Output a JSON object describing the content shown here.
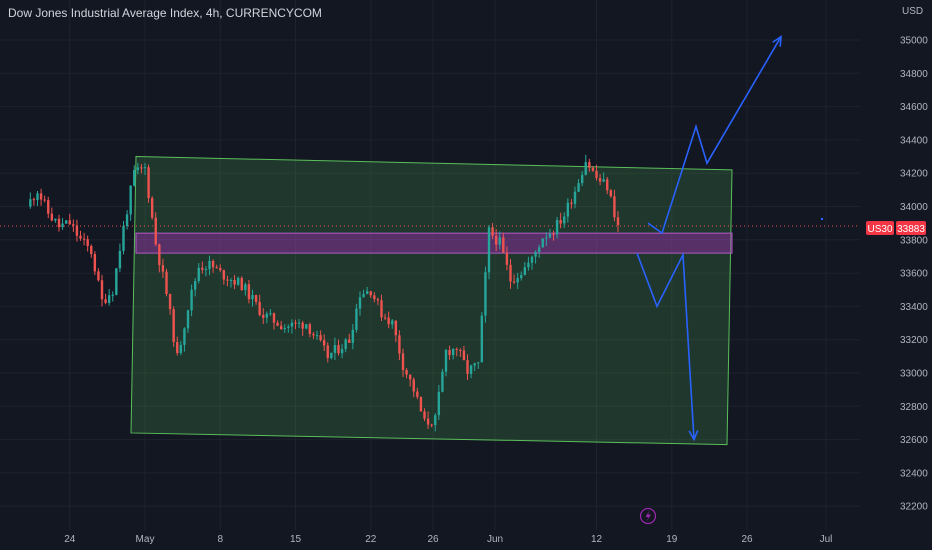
{
  "header": {
    "title": "Dow Jones Industrial Average Index, 4h, CURRENCYCOM"
  },
  "price_scale": {
    "currency": "USD"
  },
  "symbol_tag": {
    "symbol": "US30",
    "price": "33883"
  },
  "colors": {
    "background": "#131722",
    "grid": "#1e222d",
    "up": "#26a69a",
    "down": "#ef5350",
    "channel_fill": "#4caf50",
    "zone_fill": "#9c27b0",
    "projection": "#2962ff",
    "tag_red": "#f23645"
  },
  "chart_data": {
    "type": "candlestick",
    "title": "Dow Jones Industrial Average Index, 4h, CURRENCYCOM",
    "y_ticks": [
      35000,
      34800,
      34600,
      34400,
      34200,
      34000,
      33800,
      33600,
      33400,
      33200,
      33000,
      32800,
      32600,
      32400,
      32200
    ],
    "ylim": [
      32120,
      35200
    ],
    "x_ticks": [
      "24",
      "May",
      "8",
      "15",
      "22",
      "26",
      "Jun",
      "12",
      "19",
      "26",
      "Jul"
    ],
    "last_price": 33883,
    "price_path": [
      [
        "Apr 20",
        34000
      ],
      [
        "Apr 21",
        34100
      ],
      [
        "Apr 22",
        33960
      ],
      [
        "Apr 23",
        33880
      ],
      [
        "Apr 24",
        33900
      ],
      [
        "Apr 25",
        33800
      ],
      [
        "Apr 26",
        33730
      ],
      [
        "Apr 27",
        33430
      ],
      [
        "Apr 28",
        33500
      ],
      [
        "Apr 29",
        33870
      ],
      [
        "Apr 30",
        34200
      ],
      [
        "May 1",
        34230
      ],
      [
        "May 2",
        33780
      ],
      [
        "May 3",
        33480
      ],
      [
        "May 4",
        33090
      ],
      [
        "May 5",
        33400
      ],
      [
        "May 6",
        33640
      ],
      [
        "May 7",
        33650
      ],
      [
        "May 8",
        33600
      ],
      [
        "May 10",
        33530
      ],
      [
        "May 12",
        33350
      ],
      [
        "May 14",
        33280
      ],
      [
        "May 16",
        33300
      ],
      [
        "May 18",
        33100
      ],
      [
        "May 20",
        33200
      ],
      [
        "May 21",
        33480
      ],
      [
        "May 22",
        33500
      ],
      [
        "May 23",
        33360
      ],
      [
        "May 24",
        33300
      ],
      [
        "May 25",
        33050
      ],
      [
        "May 26",
        32900
      ],
      [
        "May 27",
        32700
      ],
      [
        "May 28",
        32720
      ],
      [
        "May 29",
        33130
      ],
      [
        "May 30",
        33150
      ],
      [
        "May 31",
        33010
      ],
      [
        "Jun 1",
        33050
      ],
      [
        "Jun 2",
        33850
      ],
      [
        "Jun 3",
        33780
      ],
      [
        "Jun 4",
        33560
      ],
      [
        "Jun 5",
        33610
      ],
      [
        "Jun 6",
        33680
      ],
      [
        "Jun 7",
        33820
      ],
      [
        "Jun 8",
        33860
      ],
      [
        "Jun 9",
        33950
      ],
      [
        "Jun 10",
        34100
      ],
      [
        "Jun 11",
        34280
      ],
      [
        "Jun 12",
        34170
      ],
      [
        "Jun 13",
        34120
      ],
      [
        "Jun 14",
        33883
      ]
    ],
    "channel": {
      "upper": [
        [
          34300,
          "Apr 30"
        ],
        [
          34220,
          "Jun 23"
        ]
      ],
      "lower": [
        [
          32640,
          "Apr 30"
        ],
        [
          32570,
          "Jun 23"
        ]
      ]
    },
    "resistance_zone": [
      33720,
      33840
    ],
    "scenario_up": [
      33900,
      33840,
      34480,
      34260,
      35020
    ],
    "scenario_down": [
      33720,
      33400,
      33710,
      32600
    ]
  }
}
